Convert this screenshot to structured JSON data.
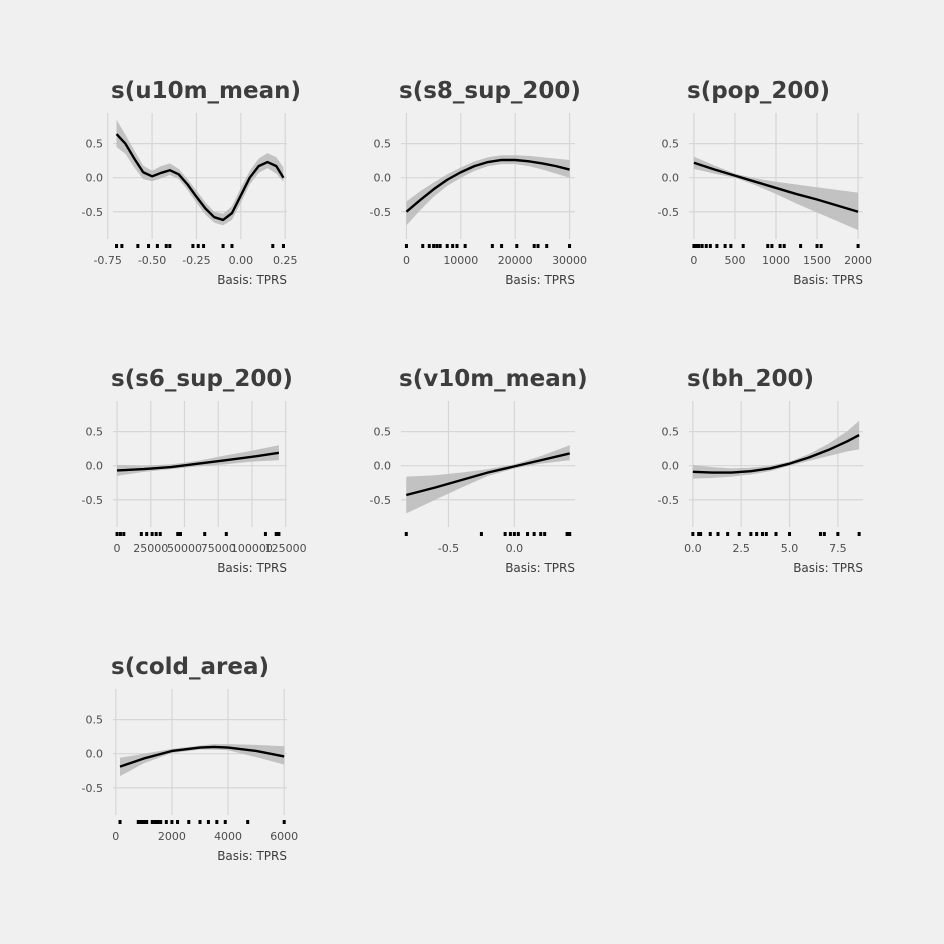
{
  "chart_data": [
    {
      "type": "line",
      "title": "s(u10m_mean)",
      "caption": "Basis: TPRS",
      "xlim": [
        -0.72,
        0.26
      ],
      "ylim": [
        -0.9,
        0.95
      ],
      "x_ticks": [
        -0.75,
        -0.5,
        -0.25,
        0.0,
        0.25
      ],
      "x_tick_labels": [
        "-0.75",
        "-0.50",
        "-0.25",
        "0.00",
        "0.25"
      ],
      "y_ticks": [
        0.5,
        0.0,
        -0.5
      ],
      "y_tick_labels": [
        "0.5",
        "0.0",
        "-0.5"
      ],
      "series": [
        {
          "x": [
            -0.7,
            -0.65,
            -0.6,
            -0.55,
            -0.5,
            -0.45,
            -0.4,
            -0.35,
            -0.3,
            -0.25,
            -0.2,
            -0.15,
            -0.1,
            -0.05,
            0.0,
            0.05,
            0.1,
            0.15,
            0.2,
            0.24
          ],
          "y": [
            0.64,
            0.5,
            0.28,
            0.08,
            0.02,
            0.07,
            0.11,
            0.05,
            -0.1,
            -0.28,
            -0.45,
            -0.58,
            -0.62,
            -0.52,
            -0.26,
            0.0,
            0.17,
            0.23,
            0.17,
            0.0
          ],
          "lower": [
            0.45,
            0.35,
            0.15,
            -0.02,
            -0.05,
            -0.01,
            0.04,
            -0.02,
            -0.18,
            -0.37,
            -0.54,
            -0.66,
            -0.7,
            -0.62,
            -0.37,
            -0.1,
            0.07,
            0.14,
            0.06,
            -0.06
          ],
          "upper": [
            0.85,
            0.63,
            0.4,
            0.18,
            0.1,
            0.17,
            0.21,
            0.13,
            -0.02,
            -0.19,
            -0.36,
            -0.5,
            -0.53,
            -0.42,
            -0.15,
            0.1,
            0.28,
            0.36,
            0.3,
            0.15
          ]
        }
      ],
      "rug": [
        -0.7,
        -0.67,
        -0.58,
        -0.52,
        -0.47,
        -0.42,
        -0.4,
        -0.27,
        -0.24,
        -0.21,
        -0.1,
        -0.05,
        0.18,
        0.24
      ]
    },
    {
      "type": "line",
      "title": "s(s8_sup_200)",
      "caption": "Basis: TPRS",
      "xlim": [
        -1000,
        31000
      ],
      "ylim": [
        -0.9,
        0.95
      ],
      "x_ticks": [
        0,
        10000,
        20000,
        30000
      ],
      "x_tick_labels": [
        "0",
        "10000",
        "20000",
        "30000"
      ],
      "y_ticks": [
        0.5,
        0.0,
        -0.5
      ],
      "y_tick_labels": [
        "0.5",
        "0.0",
        "-0.5"
      ],
      "series": [
        {
          "x": [
            0,
            2500,
            5000,
            7500,
            10000,
            12500,
            15000,
            17500,
            20000,
            22500,
            25000,
            27500,
            30000
          ],
          "y": [
            -0.5,
            -0.33,
            -0.17,
            -0.03,
            0.08,
            0.17,
            0.23,
            0.26,
            0.26,
            0.24,
            0.21,
            0.17,
            0.12
          ],
          "lower": [
            -0.7,
            -0.48,
            -0.28,
            -0.12,
            0.0,
            0.1,
            0.17,
            0.2,
            0.2,
            0.17,
            0.12,
            0.06,
            0.0
          ],
          "upper": [
            -0.35,
            -0.2,
            -0.07,
            0.05,
            0.15,
            0.24,
            0.3,
            0.33,
            0.33,
            0.32,
            0.3,
            0.28,
            0.26
          ]
        }
      ],
      "rug": [
        0,
        3000,
        4200,
        5000,
        5600,
        6200,
        7500,
        8500,
        9300,
        10800,
        15800,
        17500,
        20300,
        23500,
        24200,
        25800,
        30000
      ]
    },
    {
      "type": "line",
      "title": "s(pop_200)",
      "caption": "Basis: TPRS",
      "xlim": [
        -60,
        2060
      ],
      "ylim": [
        -0.9,
        0.95
      ],
      "x_ticks": [
        0,
        500,
        1000,
        1500,
        2000
      ],
      "x_tick_labels": [
        "0",
        "500",
        "1000",
        "1500",
        "2000"
      ],
      "y_ticks": [
        0.5,
        0.0,
        -0.5
      ],
      "y_tick_labels": [
        "0.5",
        "0.0",
        "-0.5"
      ],
      "series": [
        {
          "x": [
            0,
            250,
            500,
            750,
            1000,
            1250,
            1500,
            1750,
            2000
          ],
          "y": [
            0.22,
            0.12,
            0.03,
            -0.06,
            -0.15,
            -0.24,
            -0.32,
            -0.41,
            -0.5
          ],
          "lower": [
            0.13,
            0.06,
            0.0,
            -0.11,
            -0.24,
            -0.38,
            -0.51,
            -0.64,
            -0.77
          ],
          "upper": [
            0.31,
            0.18,
            0.06,
            -0.01,
            -0.06,
            -0.1,
            -0.14,
            -0.18,
            -0.22
          ]
        }
      ],
      "rug": [
        0,
        30,
        60,
        100,
        150,
        200,
        280,
        380,
        450,
        600,
        900,
        950,
        1050,
        1100,
        1300,
        1500,
        1550,
        2000
      ]
    },
    {
      "type": "line",
      "title": "s(s6_sup_200)",
      "caption": "Basis: TPRS",
      "xlim": [
        -3000,
        126000
      ],
      "ylim": [
        -0.9,
        0.95
      ],
      "x_ticks": [
        0,
        25000,
        50000,
        75000,
        100000,
        125000
      ],
      "x_tick_labels": [
        "0",
        "25000",
        "50000",
        "75000",
        "100000",
        "125000"
      ],
      "y_ticks": [
        0.5,
        0.0,
        -0.5
      ],
      "y_tick_labels": [
        "0.5",
        "0.0",
        "-0.5"
      ],
      "series": [
        {
          "x": [
            0,
            20000,
            40000,
            60000,
            80000,
            100000,
            120000
          ],
          "y": [
            -0.07,
            -0.05,
            -0.02,
            0.03,
            0.08,
            0.13,
            0.19
          ],
          "lower": [
            -0.15,
            -0.09,
            -0.05,
            -0.01,
            0.02,
            0.06,
            0.08
          ],
          "upper": [
            0.01,
            0.0,
            0.02,
            0.07,
            0.15,
            0.22,
            0.3
          ]
        }
      ],
      "rug": [
        0,
        2500,
        5000,
        18000,
        22000,
        26000,
        29000,
        32000,
        45000,
        47000,
        65000,
        81000,
        110000,
        118000,
        120000
      ]
    },
    {
      "type": "line",
      "title": "s(v10m_mean)",
      "caption": "Basis: TPRS",
      "xlim": [
        -0.86,
        0.46
      ],
      "ylim": [
        -0.9,
        0.95
      ],
      "x_ticks": [
        -0.5,
        0.0
      ],
      "x_tick_labels": [
        "-0.5",
        "0.0"
      ],
      "y_ticks": [
        0.5,
        0.0,
        -0.5
      ],
      "y_tick_labels": [
        "0.5",
        "0.0",
        "-0.5"
      ],
      "series": [
        {
          "x": [
            -0.82,
            -0.6,
            -0.4,
            -0.2,
            0.0,
            0.2,
            0.42
          ],
          "y": [
            -0.43,
            -0.32,
            -0.21,
            -0.1,
            -0.01,
            0.08,
            0.18
          ],
          "lower": [
            -0.7,
            -0.5,
            -0.32,
            -0.15,
            -0.04,
            0.03,
            0.08
          ],
          "upper": [
            -0.16,
            -0.14,
            -0.1,
            -0.05,
            0.02,
            0.14,
            0.3
          ]
        }
      ],
      "rug": [
        -0.82,
        -0.25,
        -0.07,
        -0.03,
        0.0,
        0.03,
        0.1,
        0.15,
        0.2,
        0.23,
        0.4,
        0.42
      ]
    },
    {
      "type": "line",
      "title": "s(bh_200)",
      "caption": "Basis: TPRS",
      "xlim": [
        -0.2,
        8.8
      ],
      "ylim": [
        -0.9,
        0.95
      ],
      "x_ticks": [
        0.0,
        2.5,
        5.0,
        7.5
      ],
      "x_tick_labels": [
        "0.0",
        "2.5",
        "5.0",
        "7.5"
      ],
      "y_ticks": [
        0.5,
        0.0,
        -0.5
      ],
      "y_tick_labels": [
        "0.5",
        "0.0",
        "-0.5"
      ],
      "series": [
        {
          "x": [
            0,
            1,
            2,
            3,
            4,
            5,
            6,
            7,
            8,
            8.6
          ],
          "y": [
            -0.09,
            -0.1,
            -0.1,
            -0.08,
            -0.04,
            0.03,
            0.12,
            0.23,
            0.36,
            0.45
          ],
          "lower": [
            -0.19,
            -0.18,
            -0.16,
            -0.13,
            -0.08,
            0.0,
            0.07,
            0.14,
            0.21,
            0.24
          ],
          "upper": [
            0.01,
            -0.02,
            -0.04,
            -0.03,
            0.0,
            0.06,
            0.17,
            0.32,
            0.51,
            0.66
          ]
        }
      ],
      "rug": [
        0,
        0.3,
        0.4,
        0.9,
        1.3,
        1.8,
        2.4,
        3.0,
        3.3,
        3.6,
        3.8,
        4.3,
        5.0,
        6.6,
        6.8,
        7.5,
        8.6
      ]
    },
    {
      "type": "line",
      "title": "s(cold_area)",
      "caption": "Basis: TPRS",
      "xlim": [
        -100,
        6100
      ],
      "ylim": [
        -0.9,
        0.95
      ],
      "x_ticks": [
        0,
        2000,
        4000,
        6000
      ],
      "x_tick_labels": [
        "0",
        "2000",
        "4000",
        "6000"
      ],
      "y_ticks": [
        0.5,
        0.0,
        -0.5
      ],
      "y_tick_labels": [
        "0.5",
        "0.0",
        "-0.5"
      ],
      "series": [
        {
          "x": [
            150,
            1000,
            2000,
            3000,
            3500,
            4000,
            5000,
            6000
          ],
          "y": [
            -0.19,
            -0.07,
            0.04,
            0.09,
            0.1,
            0.09,
            0.04,
            -0.04
          ],
          "lower": [
            -0.33,
            -0.14,
            0.01,
            0.06,
            0.06,
            0.05,
            -0.05,
            -0.16
          ],
          "upper": [
            -0.06,
            0.0,
            0.07,
            0.12,
            0.14,
            0.14,
            0.13,
            0.11
          ]
        }
      ],
      "rug": [
        150,
        800,
        900,
        1000,
        1100,
        1300,
        1400,
        1500,
        1600,
        1800,
        2000,
        2200,
        2600,
        3000,
        3300,
        3600,
        3900,
        4700,
        6000
      ]
    }
  ]
}
